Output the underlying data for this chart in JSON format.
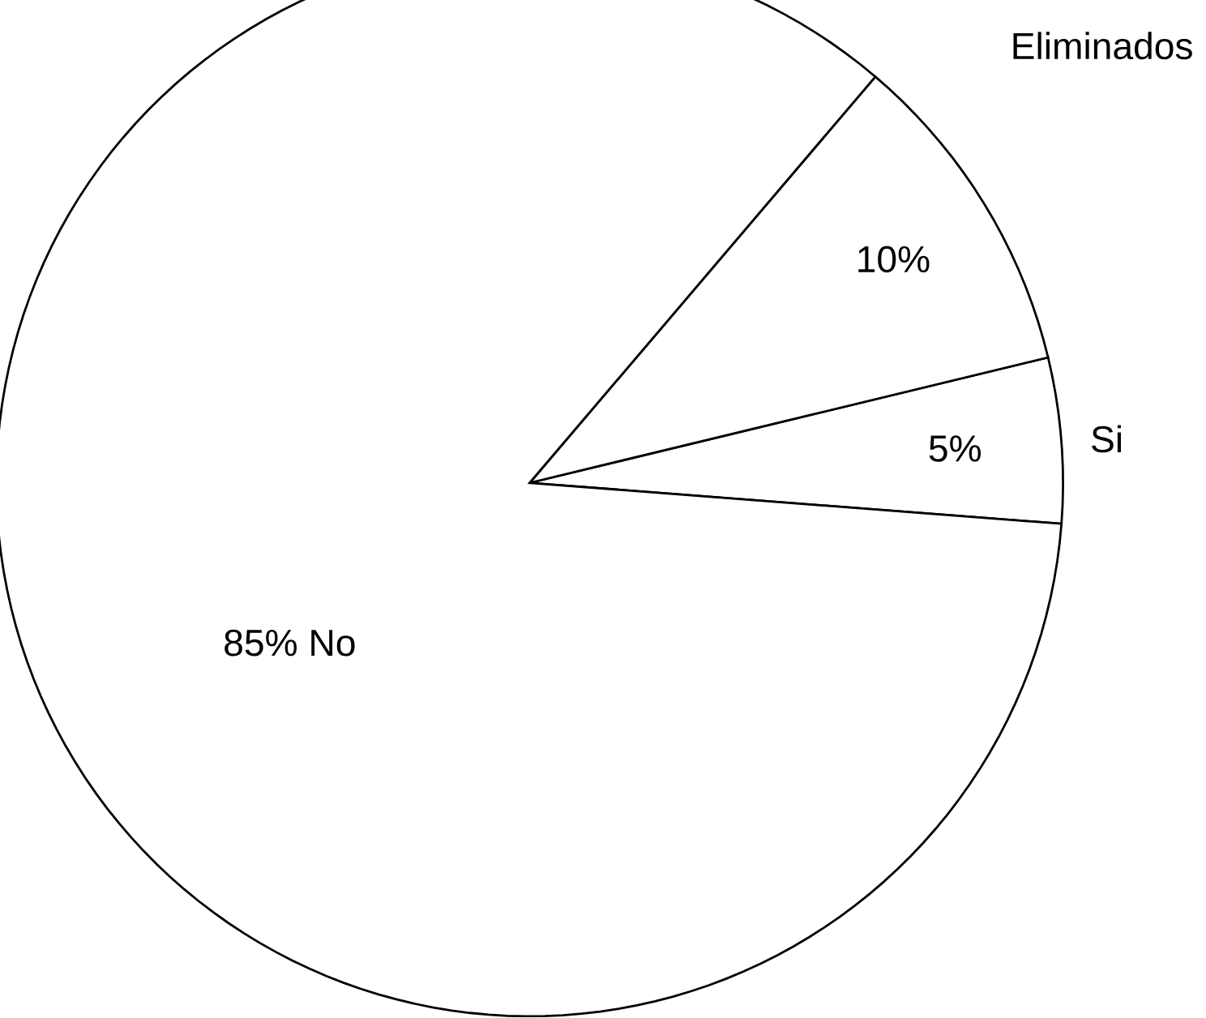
{
  "chart_data": {
    "type": "pie",
    "categories": [
      "Si",
      "Eliminados",
      "No"
    ],
    "values": [
      5,
      10,
      85
    ],
    "colors": [
      "#ffffff",
      "#ffffff",
      "#ffffff"
    ],
    "value_labels": [
      "5%",
      "10%",
      "85%"
    ]
  }
}
